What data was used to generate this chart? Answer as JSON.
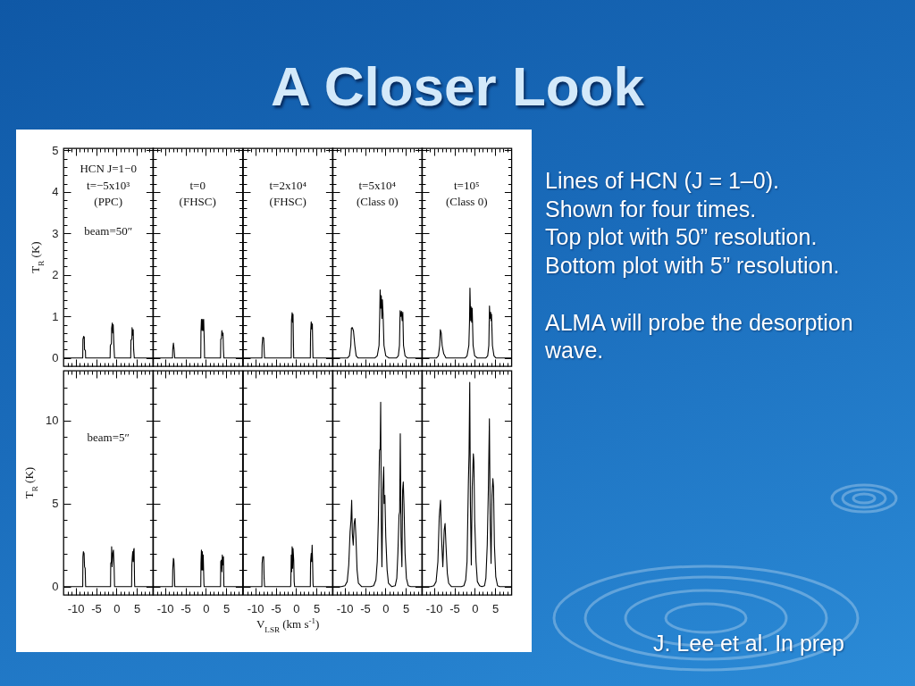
{
  "chart_data": [
    {
      "type": "other",
      "title": "A Closer Look"
    },
    {
      "type": "line",
      "x": [
        -13,
        -8.27,
        -8.22,
        -8.05,
        -7.89,
        -7.83,
        -7.61,
        -7.56,
        -1.56,
        -1.5,
        -1.23,
        -1.18,
        -1.01,
        -0.9,
        -0.79,
        -0.68,
        -0.57,
        -0.46,
        3.5,
        3.56,
        3.78,
        3.83,
        4.0,
        4.11,
        4.22,
        4.38,
        9
      ],
      "values": [
        0,
        0,
        0.45,
        0.52,
        0.5,
        0.2,
        0.18,
        0,
        0,
        0.3,
        0.35,
        0.72,
        0.84,
        0.6,
        0.8,
        0.45,
        0.2,
        0,
        0,
        0.43,
        0.45,
        0.73,
        0.55,
        0.68,
        0.2,
        0,
        0
      ],
      "color": "#000000",
      "xlim": [
        -13,
        9
      ],
      "ylim": [
        -0.2,
        5.05
      ],
      "xticks": [
        {
          "value": -12,
          "label": null
        },
        {
          "value": -11,
          "label": null
        },
        -10,
        {
          "value": -9,
          "label": null
        },
        {
          "value": -8,
          "label": null
        },
        {
          "value": -7,
          "label": null
        },
        {
          "value": -6,
          "label": null
        },
        -5,
        {
          "value": -4,
          "label": null
        },
        {
          "value": -3,
          "label": null
        },
        {
          "value": -2,
          "label": null
        },
        {
          "value": -1,
          "label": null
        },
        0,
        {
          "value": 1,
          "label": null
        },
        {
          "value": 2,
          "label": null
        },
        {
          "value": 3,
          "label": null
        },
        {
          "value": 4,
          "label": null
        },
        5,
        {
          "value": 6,
          "label": null
        },
        {
          "value": 7,
          "label": null
        },
        {
          "value": 8,
          "label": null
        }
      ],
      "yticks": [
        0,
        {
          "value": 0.2,
          "label": null
        },
        {
          "value": 0.4,
          "label": null
        },
        {
          "value": 0.6,
          "label": null
        },
        {
          "value": 0.8,
          "label": null
        },
        1,
        {
          "value": 1.2,
          "label": null
        },
        {
          "value": 1.4,
          "label": null
        },
        {
          "value": 1.6,
          "label": null
        },
        {
          "value": 1.8,
          "label": null
        },
        2,
        {
          "value": 2.2,
          "label": null
        },
        {
          "value": 2.4,
          "label": null
        },
        {
          "value": 2.6,
          "label": null
        },
        {
          "value": 2.8,
          "label": null
        },
        3,
        {
          "value": 3.2,
          "label": null
        },
        {
          "value": 3.4,
          "label": null
        },
        {
          "value": 3.6,
          "label": null
        },
        {
          "value": 3.8,
          "label": null
        },
        4,
        {
          "value": 4.2,
          "label": null
        },
        {
          "value": 4.4,
          "label": null
        },
        {
          "value": 4.6,
          "label": null
        },
        {
          "value": 4.8,
          "label": null
        },
        5
      ],
      "tick_labels": "y",
      "ylabel": "T$_{R}$ (K)",
      "annotations": [
        "HCN J=1−0",
        "t=−5x10³",
        "(PPC)",
        "beam=50″"
      ]
    },
    {
      "type": "line",
      "x": [
        -13,
        -8.16,
        -8.11,
        -7.94,
        -7.78,
        -7.61,
        -1.23,
        -1.18,
        -1.07,
        -0.9,
        -0.79,
        -0.63,
        -0.52,
        -0.35,
        -0.3,
        3.61,
        3.67,
        3.83,
        3.94,
        4.05,
        4.22,
        4.33,
        4.44,
        9
      ],
      "values": [
        0,
        0,
        0.2,
        0.36,
        0.22,
        0,
        0,
        0.65,
        0.93,
        0.66,
        0.93,
        0.66,
        0.93,
        0.3,
        0,
        0,
        0.45,
        0.47,
        0.66,
        0.55,
        0.6,
        0.2,
        0,
        0
      ],
      "color": "#000000",
      "xlim": [
        -13,
        9
      ],
      "ylim": [
        -0.2,
        5.05
      ],
      "xticks": [
        {
          "value": -12,
          "label": null
        },
        {
          "value": -11,
          "label": null
        },
        -10,
        {
          "value": -9,
          "label": null
        },
        {
          "value": -8,
          "label": null
        },
        {
          "value": -7,
          "label": null
        },
        {
          "value": -6,
          "label": null
        },
        -5,
        {
          "value": -4,
          "label": null
        },
        {
          "value": -3,
          "label": null
        },
        {
          "value": -2,
          "label": null
        },
        {
          "value": -1,
          "label": null
        },
        0,
        {
          "value": 1,
          "label": null
        },
        {
          "value": 2,
          "label": null
        },
        {
          "value": 3,
          "label": null
        },
        {
          "value": 4,
          "label": null
        },
        5,
        {
          "value": 6,
          "label": null
        },
        {
          "value": 7,
          "label": null
        },
        {
          "value": 8,
          "label": null
        }
      ],
      "yticks": [
        0,
        {
          "value": 0.2,
          "label": null
        },
        {
          "value": 0.4,
          "label": null
        },
        {
          "value": 0.6,
          "label": null
        },
        {
          "value": 0.8,
          "label": null
        },
        1,
        {
          "value": 1.2,
          "label": null
        },
        {
          "value": 1.4,
          "label": null
        },
        {
          "value": 1.6,
          "label": null
        },
        {
          "value": 1.8,
          "label": null
        },
        2,
        {
          "value": 2.2,
          "label": null
        },
        {
          "value": 2.4,
          "label": null
        },
        {
          "value": 2.6,
          "label": null
        },
        {
          "value": 2.8,
          "label": null
        },
        3,
        {
          "value": 3.2,
          "label": null
        },
        {
          "value": 3.4,
          "label": null
        },
        {
          "value": 3.6,
          "label": null
        },
        {
          "value": 3.8,
          "label": null
        },
        4,
        {
          "value": 4.2,
          "label": null
        },
        {
          "value": 4.4,
          "label": null
        },
        {
          "value": 4.6,
          "label": null
        },
        {
          "value": 4.8,
          "label": null
        },
        5
      ],
      "tick_labels": false,
      "annotations": [
        "t=0",
        "(FHSC)"
      ]
    },
    {
      "type": "line",
      "x": [
        -13,
        -8.38,
        -8.33,
        -8.16,
        -7.94,
        -7.78,
        -7.72,
        -1.18,
        -1.12,
        -0.96,
        -0.85,
        -0.74,
        -0.63,
        -0.57,
        3.5,
        3.56,
        3.72,
        3.83,
        4.0,
        4.11,
        4.16,
        9
      ],
      "values": [
        0,
        0,
        0.3,
        0.5,
        0.48,
        0.1,
        0,
        0,
        0.9,
        1.09,
        0.86,
        1.05,
        0.3,
        0,
        0,
        0.6,
        0.87,
        0.7,
        0.82,
        0.2,
        0,
        0
      ],
      "color": "#000000",
      "xlim": [
        -13,
        9
      ],
      "ylim": [
        -0.2,
        5.05
      ],
      "xticks": [
        {
          "value": -12,
          "label": null
        },
        {
          "value": -11,
          "label": null
        },
        -10,
        {
          "value": -9,
          "label": null
        },
        {
          "value": -8,
          "label": null
        },
        {
          "value": -7,
          "label": null
        },
        {
          "value": -6,
          "label": null
        },
        -5,
        {
          "value": -4,
          "label": null
        },
        {
          "value": -3,
          "label": null
        },
        {
          "value": -2,
          "label": null
        },
        {
          "value": -1,
          "label": null
        },
        0,
        {
          "value": 1,
          "label": null
        },
        {
          "value": 2,
          "label": null
        },
        {
          "value": 3,
          "label": null
        },
        {
          "value": 4,
          "label": null
        },
        5,
        {
          "value": 6,
          "label": null
        },
        {
          "value": 7,
          "label": null
        },
        {
          "value": 8,
          "label": null
        }
      ],
      "yticks": [
        0,
        {
          "value": 0.2,
          "label": null
        },
        {
          "value": 0.4,
          "label": null
        },
        {
          "value": 0.6,
          "label": null
        },
        {
          "value": 0.8,
          "label": null
        },
        1,
        {
          "value": 1.2,
          "label": null
        },
        {
          "value": 1.4,
          "label": null
        },
        {
          "value": 1.6,
          "label": null
        },
        {
          "value": 1.8,
          "label": null
        },
        2,
        {
          "value": 2.2,
          "label": null
        },
        {
          "value": 2.4,
          "label": null
        },
        {
          "value": 2.6,
          "label": null
        },
        {
          "value": 2.8,
          "label": null
        },
        3,
        {
          "value": 3.2,
          "label": null
        },
        {
          "value": 3.4,
          "label": null
        },
        {
          "value": 3.6,
          "label": null
        },
        {
          "value": 3.8,
          "label": null
        },
        4,
        {
          "value": 4.2,
          "label": null
        },
        {
          "value": 4.4,
          "label": null
        },
        {
          "value": 4.6,
          "label": null
        },
        {
          "value": 4.8,
          "label": null
        },
        5
      ],
      "tick_labels": false,
      "annotations": [
        "t=2x10⁴",
        "(FHSC)"
      ]
    },
    {
      "type": "line",
      "x": [
        -13,
        -9.26,
        -8.82,
        -8.49,
        -8.33,
        -8.11,
        -7.83,
        -7.5,
        -7.17,
        -6.73,
        -2.55,
        -2.0,
        -1.56,
        -1.4,
        -1.29,
        -1.12,
        -1.01,
        -0.85,
        -0.74,
        -0.57,
        -0.35,
        0.09,
        0.86,
        2.73,
        3.17,
        3.45,
        3.61,
        3.78,
        3.94,
        4.11,
        4.27,
        4.44,
        4.82,
        5.37,
        9
      ],
      "values": [
        0,
        0,
        0.05,
        0.3,
        0.72,
        0.73,
        0.65,
        0.3,
        0.05,
        0,
        0,
        0.05,
        0.3,
        1.0,
        1.64,
        1.2,
        1.5,
        0.95,
        1.4,
        1.05,
        0.3,
        0.05,
        0,
        0,
        0.05,
        0.3,
        1.14,
        1.0,
        1.12,
        0.9,
        1.1,
        0.3,
        0.05,
        0,
        0
      ],
      "color": "#000000",
      "xlim": [
        -13,
        9
      ],
      "ylim": [
        -0.2,
        5.05
      ],
      "xticks": [
        {
          "value": -12,
          "label": null
        },
        {
          "value": -11,
          "label": null
        },
        -10,
        {
          "value": -9,
          "label": null
        },
        {
          "value": -8,
          "label": null
        },
        {
          "value": -7,
          "label": null
        },
        {
          "value": -6,
          "label": null
        },
        -5,
        {
          "value": -4,
          "label": null
        },
        {
          "value": -3,
          "label": null
        },
        {
          "value": -2,
          "label": null
        },
        {
          "value": -1,
          "label": null
        },
        0,
        {
          "value": 1,
          "label": null
        },
        {
          "value": 2,
          "label": null
        },
        {
          "value": 3,
          "label": null
        },
        {
          "value": 4,
          "label": null
        },
        5,
        {
          "value": 6,
          "label": null
        },
        {
          "value": 7,
          "label": null
        },
        {
          "value": 8,
          "label": null
        }
      ],
      "yticks": [
        0,
        {
          "value": 0.2,
          "label": null
        },
        {
          "value": 0.4,
          "label": null
        },
        {
          "value": 0.6,
          "label": null
        },
        {
          "value": 0.8,
          "label": null
        },
        1,
        {
          "value": 1.2,
          "label": null
        },
        {
          "value": 1.4,
          "label": null
        },
        {
          "value": 1.6,
          "label": null
        },
        {
          "value": 1.8,
          "label": null
        },
        2,
        {
          "value": 2.2,
          "label": null
        },
        {
          "value": 2.4,
          "label": null
        },
        {
          "value": 2.6,
          "label": null
        },
        {
          "value": 2.8,
          "label": null
        },
        3,
        {
          "value": 3.2,
          "label": null
        },
        {
          "value": 3.4,
          "label": null
        },
        {
          "value": 3.6,
          "label": null
        },
        {
          "value": 3.8,
          "label": null
        },
        4,
        {
          "value": 4.2,
          "label": null
        },
        {
          "value": 4.4,
          "label": null
        },
        {
          "value": 4.6,
          "label": null
        },
        {
          "value": 4.8,
          "label": null
        },
        5
      ],
      "tick_labels": false,
      "annotations": [
        "t=5x10⁴",
        "(Class 0)"
      ]
    },
    {
      "type": "line",
      "x": [
        -13,
        -9.37,
        -8.93,
        -8.6,
        -8.44,
        -8.22,
        -8.0,
        -7.61,
        -7.06,
        -2.33,
        -1.89,
        -1.45,
        -1.29,
        -1.18,
        -1.01,
        -0.9,
        -0.74,
        -0.63,
        -0.41,
        -0.02,
        0.64,
        2.73,
        3.17,
        3.45,
        3.61,
        3.72,
        3.89,
        4.0,
        4.11,
        4.33,
        4.71,
        5.15,
        9
      ],
      "values": [
        0,
        0,
        0.05,
        0.3,
        0.68,
        0.6,
        0.3,
        0.1,
        0,
        0,
        0.05,
        0.3,
        0.86,
        1.68,
        0.9,
        1.23,
        0.86,
        1.2,
        0.3,
        0.05,
        0,
        0,
        0.05,
        0.3,
        1.25,
        0.95,
        1.1,
        0.9,
        1.05,
        0.3,
        0.05,
        0,
        0
      ],
      "color": "#000000",
      "xlim": [
        -13,
        9
      ],
      "ylim": [
        -0.2,
        5.05
      ],
      "xticks": [
        {
          "value": -12,
          "label": null
        },
        {
          "value": -11,
          "label": null
        },
        -10,
        {
          "value": -9,
          "label": null
        },
        {
          "value": -8,
          "label": null
        },
        {
          "value": -7,
          "label": null
        },
        {
          "value": -6,
          "label": null
        },
        -5,
        {
          "value": -4,
          "label": null
        },
        {
          "value": -3,
          "label": null
        },
        {
          "value": -2,
          "label": null
        },
        {
          "value": -1,
          "label": null
        },
        0,
        {
          "value": 1,
          "label": null
        },
        {
          "value": 2,
          "label": null
        },
        {
          "value": 3,
          "label": null
        },
        {
          "value": 4,
          "label": null
        },
        5,
        {
          "value": 6,
          "label": null
        },
        {
          "value": 7,
          "label": null
        },
        {
          "value": 8,
          "label": null
        }
      ],
      "yticks": [
        0,
        {
          "value": 0.2,
          "label": null
        },
        {
          "value": 0.4,
          "label": null
        },
        {
          "value": 0.6,
          "label": null
        },
        {
          "value": 0.8,
          "label": null
        },
        1,
        {
          "value": 1.2,
          "label": null
        },
        {
          "value": 1.4,
          "label": null
        },
        {
          "value": 1.6,
          "label": null
        },
        {
          "value": 1.8,
          "label": null
        },
        2,
        {
          "value": 2.2,
          "label": null
        },
        {
          "value": 2.4,
          "label": null
        },
        {
          "value": 2.6,
          "label": null
        },
        {
          "value": 2.8,
          "label": null
        },
        3,
        {
          "value": 3.2,
          "label": null
        },
        {
          "value": 3.4,
          "label": null
        },
        {
          "value": 3.6,
          "label": null
        },
        {
          "value": 3.8,
          "label": null
        },
        4,
        {
          "value": 4.2,
          "label": null
        },
        {
          "value": 4.4,
          "label": null
        },
        {
          "value": 4.6,
          "label": null
        },
        {
          "value": 4.8,
          "label": null
        },
        5
      ],
      "tick_labels": false,
      "annotations": [
        "t=10⁵",
        "(Class 0)"
      ]
    },
    {
      "type": "line",
      "x": [
        -13,
        -8.27,
        -8.22,
        -8.11,
        -7.94,
        -7.83,
        -7.67,
        -7.56,
        -1.45,
        -1.4,
        -1.23,
        -1.18,
        -1.07,
        -0.9,
        -0.74,
        -0.57,
        -0.46,
        3.72,
        3.78,
        3.89,
        4.0,
        4.11,
        4.22,
        4.33,
        4.44,
        4.49,
        9
      ],
      "values": [
        0,
        0,
        1.8,
        2.1,
        2.0,
        1.2,
        1.1,
        0,
        0,
        1.4,
        1.5,
        2.4,
        1.2,
        2.0,
        2.2,
        1.2,
        0,
        0,
        1.3,
        1.8,
        2.1,
        1.5,
        2.2,
        2.3,
        0.3,
        0,
        0
      ],
      "color": "#000000",
      "xlim": [
        -13,
        9
      ],
      "ylim": [
        -0.5,
        13
      ],
      "xticks": [
        {
          "value": -12,
          "label": null
        },
        {
          "value": -11,
          "label": null
        },
        -10,
        {
          "value": -9,
          "label": null
        },
        {
          "value": -8,
          "label": null
        },
        {
          "value": -7,
          "label": null
        },
        {
          "value": -6,
          "label": null
        },
        -5,
        {
          "value": -4,
          "label": null
        },
        {
          "value": -3,
          "label": null
        },
        {
          "value": -2,
          "label": null
        },
        {
          "value": -1,
          "label": null
        },
        0,
        {
          "value": 1,
          "label": null
        },
        {
          "value": 2,
          "label": null
        },
        {
          "value": 3,
          "label": null
        },
        {
          "value": 4,
          "label": null
        },
        5,
        {
          "value": 6,
          "label": null
        },
        {
          "value": 7,
          "label": null
        },
        {
          "value": 8,
          "label": null
        }
      ],
      "yticks": [
        0,
        {
          "value": 1,
          "label": null
        },
        {
          "value": 2,
          "label": null
        },
        {
          "value": 3,
          "label": null
        },
        {
          "value": 4,
          "label": null
        },
        5,
        {
          "value": 6,
          "label": null
        },
        {
          "value": 7,
          "label": null
        },
        {
          "value": 8,
          "label": null
        },
        {
          "value": 9,
          "label": null
        },
        10,
        {
          "value": 11,
          "label": null
        },
        {
          "value": 12,
          "label": null
        }
      ],
      "ylabel": "T$_{R}$ (K)",
      "annotations": [
        "beam=5″"
      ]
    },
    {
      "type": "line",
      "x": [
        -13,
        -8.16,
        -8.11,
        -7.94,
        -7.83,
        -7.72,
        -7.61,
        -1.23,
        -1.18,
        -1.07,
        -0.96,
        -0.85,
        -0.74,
        -0.63,
        -0.46,
        -0.41,
        3.61,
        3.67,
        3.83,
        3.94,
        4.05,
        4.16,
        4.33,
        4.44,
        9
      ],
      "values": [
        0,
        0,
        1.0,
        1.7,
        1.6,
        1.0,
        0,
        0,
        1.4,
        2.2,
        1.0,
        2.1,
        1.0,
        1.9,
        0.2,
        0,
        0,
        1.5,
        1.6,
        0.9,
        1.9,
        1.3,
        1.8,
        0,
        0
      ],
      "color": "#000000",
      "xlim": [
        -13,
        9
      ],
      "ylim": [
        -0.5,
        13
      ],
      "xticks": [
        {
          "value": -12,
          "label": null
        },
        {
          "value": -11,
          "label": null
        },
        -10,
        {
          "value": -9,
          "label": null
        },
        {
          "value": -8,
          "label": null
        },
        {
          "value": -7,
          "label": null
        },
        {
          "value": -6,
          "label": null
        },
        -5,
        {
          "value": -4,
          "label": null
        },
        {
          "value": -3,
          "label": null
        },
        {
          "value": -2,
          "label": null
        },
        {
          "value": -1,
          "label": null
        },
        0,
        {
          "value": 1,
          "label": null
        },
        {
          "value": 2,
          "label": null
        },
        {
          "value": 3,
          "label": null
        },
        {
          "value": 4,
          "label": null
        },
        5,
        {
          "value": 6,
          "label": null
        },
        {
          "value": 7,
          "label": null
        },
        {
          "value": 8,
          "label": null
        }
      ],
      "yticks": [
        0,
        {
          "value": 1,
          "label": null
        },
        {
          "value": 2,
          "label": null
        },
        {
          "value": 3,
          "label": null
        },
        {
          "value": 4,
          "label": null
        },
        5,
        {
          "value": 6,
          "label": null
        },
        {
          "value": 7,
          "label": null
        },
        {
          "value": 8,
          "label": null
        },
        {
          "value": 9,
          "label": null
        },
        10,
        {
          "value": 11,
          "label": null
        },
        {
          "value": 12,
          "label": null
        }
      ],
      "tick_labels": "x"
    },
    {
      "type": "line",
      "x": [
        -13,
        -8.38,
        -8.33,
        -8.16,
        -7.94,
        -7.83,
        -7.72,
        -1.34,
        -1.29,
        -1.18,
        -1.07,
        -0.96,
        -0.85,
        -0.74,
        -0.57,
        -0.46,
        -0.35,
        3.5,
        3.56,
        3.72,
        3.83,
        3.94,
        4.05,
        4.16,
        4.22,
        9
      ],
      "values": [
        0,
        0,
        1.4,
        1.8,
        1.8,
        0.5,
        0,
        0,
        0.1,
        1.9,
        0.9,
        2.4,
        1.1,
        2.3,
        1.6,
        0.3,
        0,
        0,
        1.5,
        2.0,
        1.5,
        2.5,
        1.6,
        0.2,
        0,
        0
      ],
      "color": "#000000",
      "xlim": [
        -13,
        9
      ],
      "ylim": [
        -0.5,
        13
      ],
      "xticks": [
        {
          "value": -12,
          "label": null
        },
        {
          "value": -11,
          "label": null
        },
        -10,
        {
          "value": -9,
          "label": null
        },
        {
          "value": -8,
          "label": null
        },
        {
          "value": -7,
          "label": null
        },
        {
          "value": -6,
          "label": null
        },
        -5,
        {
          "value": -4,
          "label": null
        },
        {
          "value": -3,
          "label": null
        },
        {
          "value": -2,
          "label": null
        },
        {
          "value": -1,
          "label": null
        },
        0,
        {
          "value": 1,
          "label": null
        },
        {
          "value": 2,
          "label": null
        },
        {
          "value": 3,
          "label": null
        },
        {
          "value": 4,
          "label": null
        },
        5,
        {
          "value": 6,
          "label": null
        },
        {
          "value": 7,
          "label": null
        },
        {
          "value": 8,
          "label": null
        }
      ],
      "yticks": [
        0,
        {
          "value": 1,
          "label": null
        },
        {
          "value": 2,
          "label": null
        },
        {
          "value": 3,
          "label": null
        },
        {
          "value": 4,
          "label": null
        },
        5,
        {
          "value": 6,
          "label": null
        },
        {
          "value": 7,
          "label": null
        },
        {
          "value": 8,
          "label": null
        },
        {
          "value": 9,
          "label": null
        },
        10,
        {
          "value": 11,
          "label": null
        },
        {
          "value": 12,
          "label": null
        }
      ],
      "tick_labels": "x",
      "xlabel": "V$_{LSR}$ (km s$^{-1}$)"
    },
    {
      "type": "line",
      "x": [
        -13,
        -10.8,
        -9.92,
        -9.37,
        -8.99,
        -8.66,
        -8.44,
        -8.27,
        -8.11,
        -7.89,
        -7.67,
        -7.45,
        -7.23,
        -6.95,
        -6.62,
        -5.85,
        -3.65,
        -2.88,
        -2.33,
        -2.0,
        -1.73,
        -1.45,
        -1.29,
        -1.16,
        -1.01,
        -0.85,
        -0.63,
        -0.41,
        -0.3,
        -0.13,
        0.09,
        0.42,
        0.75,
        1.52,
        2.4,
        2.79,
        3.06,
        3.34,
        3.5,
        3.65,
        3.83,
        4.05,
        4.22,
        4.38,
        4.55,
        4.82,
        5.15,
        5.59,
        6.25,
        9
      ],
      "values": [
        0,
        0,
        0.05,
        0.3,
        1.3,
        3.3,
        4.0,
        5.2,
        3.2,
        2.5,
        3.8,
        4.1,
        3.0,
        1.0,
        0.2,
        0,
        0,
        0.05,
        0.4,
        1.5,
        4.0,
        8.2,
        8.3,
        11.1,
        4.0,
        1.2,
        5.8,
        7.2,
        5.0,
        5.5,
        3.0,
        1.0,
        0.2,
        0,
        0.05,
        0.5,
        2.0,
        4.3,
        4.5,
        9.2,
        3.0,
        1.2,
        5.8,
        6.3,
        5.0,
        2.0,
        0.5,
        0.05,
        0,
        0
      ],
      "color": "#000000",
      "xlim": [
        -13,
        9
      ],
      "ylim": [
        -0.5,
        13
      ],
      "xticks": [
        {
          "value": -12,
          "label": null
        },
        {
          "value": -11,
          "label": null
        },
        -10,
        {
          "value": -9,
          "label": null
        },
        {
          "value": -8,
          "label": null
        },
        {
          "value": -7,
          "label": null
        },
        {
          "value": -6,
          "label": null
        },
        -5,
        {
          "value": -4,
          "label": null
        },
        {
          "value": -3,
          "label": null
        },
        {
          "value": -2,
          "label": null
        },
        {
          "value": -1,
          "label": null
        },
        0,
        {
          "value": 1,
          "label": null
        },
        {
          "value": 2,
          "label": null
        },
        {
          "value": 3,
          "label": null
        },
        {
          "value": 4,
          "label": null
        },
        5,
        {
          "value": 6,
          "label": null
        },
        {
          "value": 7,
          "label": null
        },
        {
          "value": 8,
          "label": null
        }
      ],
      "yticks": [
        0,
        {
          "value": 1,
          "label": null
        },
        {
          "value": 2,
          "label": null
        },
        {
          "value": 3,
          "label": null
        },
        {
          "value": 4,
          "label": null
        },
        5,
        {
          "value": 6,
          "label": null
        },
        {
          "value": 7,
          "label": null
        },
        {
          "value": 8,
          "label": null
        },
        {
          "value": 9,
          "label": null
        },
        10,
        {
          "value": 11,
          "label": null
        },
        {
          "value": 12,
          "label": null
        }
      ],
      "tick_labels": "x"
    },
    {
      "type": "line",
      "x": [
        -13,
        -10.8,
        -10.03,
        -9.48,
        -9.04,
        -8.71,
        -8.4,
        -8.16,
        -7.83,
        -7.5,
        -7.28,
        -7.06,
        -6.73,
        -6.4,
        -5.74,
        -3.32,
        -2.66,
        -2.22,
        -1.89,
        -1.56,
        -1.4,
        -1.23,
        -1.07,
        -0.85,
        -0.63,
        -0.35,
        -0.21,
        -0.02,
        0.31,
        0.64,
        1.19,
        1.74,
        2.4,
        2.73,
        3.06,
        3.34,
        3.59,
        3.78,
        4.0,
        4.22,
        4.44,
        4.6,
        4.82,
        5.15,
        5.59,
        6.14,
        9
      ],
      "values": [
        0,
        0,
        0.05,
        0.3,
        1.5,
        4.2,
        5.2,
        3.0,
        1.2,
        3.4,
        3.8,
        2.5,
        0.8,
        0.2,
        0,
        0,
        0.05,
        0.4,
        1.5,
        6.3,
        8.0,
        12.3,
        5.0,
        1.3,
        6.0,
        8.0,
        7.5,
        4.0,
        1.5,
        0.3,
        0.05,
        0,
        0.05,
        0.5,
        2.5,
        5.9,
        10.1,
        4.0,
        1.4,
        5.5,
        6.5,
        6.0,
        2.5,
        0.6,
        0.05,
        0,
        0
      ],
      "color": "#000000",
      "xlim": [
        -13,
        9
      ],
      "ylim": [
        -0.5,
        13
      ],
      "xticks": [
        {
          "value": -12,
          "label": null
        },
        {
          "value": -11,
          "label": null
        },
        -10,
        {
          "value": -9,
          "label": null
        },
        {
          "value": -8,
          "label": null
        },
        {
          "value": -7,
          "label": null
        },
        {
          "value": -6,
          "label": null
        },
        -5,
        {
          "value": -4,
          "label": null
        },
        {
          "value": -3,
          "label": null
        },
        {
          "value": -2,
          "label": null
        },
        {
          "value": -1,
          "label": null
        },
        0,
        {
          "value": 1,
          "label": null
        },
        {
          "value": 2,
          "label": null
        },
        {
          "value": 3,
          "label": null
        },
        {
          "value": 4,
          "label": null
        },
        5,
        {
          "value": 6,
          "label": null
        },
        {
          "value": 7,
          "label": null
        },
        {
          "value": 8,
          "label": null
        }
      ],
      "yticks": [
        0,
        {
          "value": 1,
          "label": null
        },
        {
          "value": 2,
          "label": null
        },
        {
          "value": 3,
          "label": null
        },
        {
          "value": 4,
          "label": null
        },
        5,
        {
          "value": 6,
          "label": null
        },
        {
          "value": 7,
          "label": null
        },
        {
          "value": 8,
          "label": null
        },
        {
          "value": 9,
          "label": null
        },
        10,
        {
          "value": 11,
          "label": null
        },
        {
          "value": 12,
          "label": null
        }
      ],
      "tick_labels": "x"
    },
    {
      "type": "other",
      "annotations": [
        "Lines of HCN (J = 1–0).",
        "Shown for four times.",
        "Top plot with 50” resolution.",
        "Bottom plot with 5” resolution.",
        "ALMA will probe the desorption wave.",
        "J. Lee et al. In prep"
      ]
    }
  ]
}
